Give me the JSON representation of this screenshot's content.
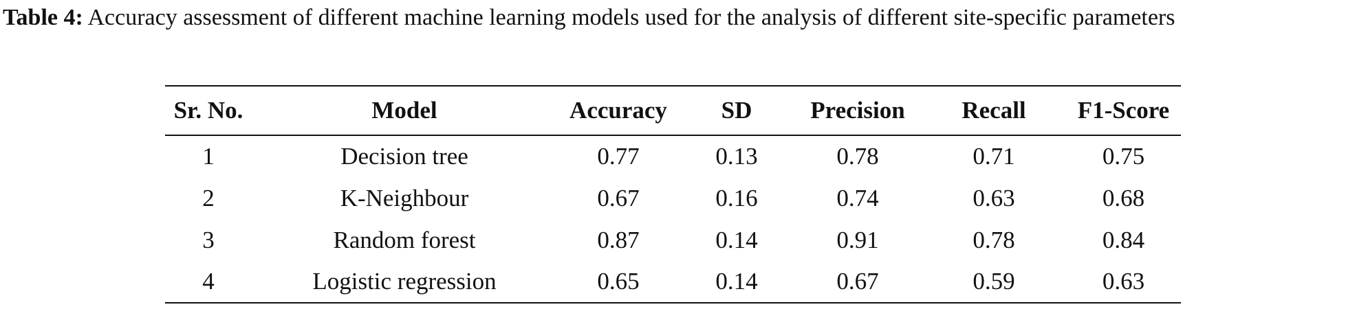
{
  "caption": {
    "label": "Table 4:",
    "text": "Accuracy assessment of different machine learning models used for the analysis of different site-specific parameters"
  },
  "table": {
    "header": [
      "Sr. No.",
      "Model",
      "Accuracy",
      "SD",
      "Precision",
      "Recall",
      "F1-Score"
    ],
    "rows": [
      [
        "1",
        "Decision tree",
        "0.77",
        "0.13",
        "0.78",
        "0.71",
        "0.75"
      ],
      [
        "2",
        "K-Neighbour",
        "0.67",
        "0.16",
        "0.74",
        "0.63",
        "0.68"
      ],
      [
        "3",
        "Random forest",
        "0.87",
        "0.14",
        "0.91",
        "0.78",
        "0.84"
      ],
      [
        "4",
        "Logistic regression",
        "0.65",
        "0.14",
        "0.67",
        "0.59",
        "0.63"
      ]
    ]
  }
}
